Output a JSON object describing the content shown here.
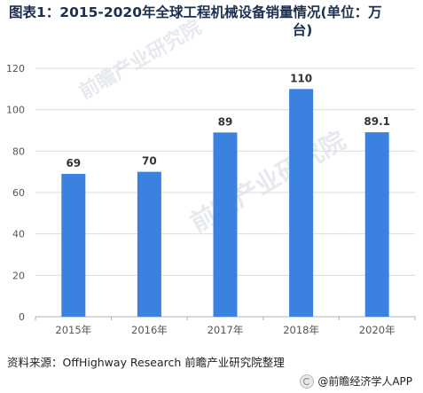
{
  "title_line1": "图表1：2015-2020年全球工程机械设备销量情况(单位：万",
  "title_line2": "台)",
  "source": "资料来源：OffHighway Research 前瞻产业研究院整理",
  "footer": "@前瞻经济学人APP",
  "watermark": "前瞻产业研究院",
  "colors": {
    "bar": "#3b82e0",
    "grid": "#dcdcdc",
    "axis": "#b0b0b0",
    "text": "#555555"
  },
  "chart_data": {
    "type": "bar",
    "categories": [
      "2015年",
      "2016年",
      "2017年",
      "2018年",
      "2020年"
    ],
    "values": [
      69,
      70,
      89,
      110,
      89.1
    ],
    "value_labels": [
      "69",
      "70",
      "89",
      "110",
      "89.1"
    ],
    "ylim": [
      0,
      120
    ],
    "yticks": [
      0,
      20,
      40,
      60,
      80,
      100,
      120
    ],
    "grid": true,
    "legend": false
  }
}
